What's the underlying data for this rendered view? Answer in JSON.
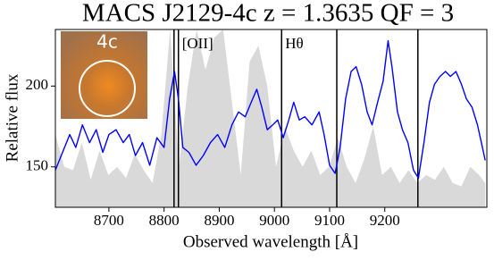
{
  "chart_data": {
    "type": "spectrum",
    "title": "MACS J2129-4c z = 1.3635 QF = 3",
    "x_label": "Observed wavelength [Å]",
    "y_label": "Relative flux",
    "inset_label": "4c",
    "xlim": [
      8603,
      9385
    ],
    "ylim": [
      125,
      235
    ],
    "xticks": [
      8700,
      8800,
      8900,
      9000,
      9100,
      9200
    ],
    "yticks": [
      150,
      200
    ],
    "lines": [
      8818,
      8826,
      9013,
      9113,
      9260
    ],
    "line_labels": [
      null,
      "[OII]",
      "Hθ",
      null,
      null
    ],
    "line_color": "#000000",
    "noise": {
      "color": "#d9d9d9",
      "x": [
        8603,
        8619,
        8635,
        8651,
        8667,
        8683,
        8699,
        8715,
        8731,
        8747,
        8763,
        8779,
        8795,
        8811,
        8827,
        8843,
        8859,
        8875,
        8891,
        8907,
        8923,
        8939,
        8955,
        8971,
        8987,
        9003,
        9019,
        9035,
        9051,
        9067,
        9083,
        9099,
        9115,
        9131,
        9147,
        9163,
        9179,
        9195,
        9211,
        9227,
        9243,
        9259,
        9275,
        9291,
        9307,
        9323,
        9339,
        9355,
        9371,
        9382
      ],
      "values": [
        170,
        150,
        148,
        165,
        142,
        160,
        145,
        150,
        143,
        158,
        148,
        140,
        170,
        235,
        150,
        200,
        235,
        210,
        230,
        235,
        190,
        145,
        215,
        225,
        200,
        150,
        175,
        160,
        150,
        160,
        145,
        150,
        168,
        150,
        140,
        155,
        175,
        145,
        150,
        140,
        148,
        140,
        145,
        142,
        150,
        140,
        138,
        150,
        145,
        140
      ]
    },
    "spectrum": {
      "color": "#0000ff",
      "x": [
        8603,
        8616,
        8629,
        8640,
        8652,
        8665,
        8677,
        8689,
        8700,
        8713,
        8726,
        8737,
        8748,
        8761,
        8774,
        8787,
        8800,
        8810,
        8819,
        8826,
        8834,
        8845,
        8858,
        8871,
        8884,
        8897,
        8910,
        8923,
        8935,
        8947,
        8958,
        8968,
        8977,
        8987,
        8997,
        9006,
        9016,
        9026,
        9035,
        9045,
        9055,
        9068,
        9081,
        9090,
        9100,
        9110,
        9119,
        9129,
        9139,
        9148,
        9158,
        9168,
        9177,
        9187,
        9197,
        9206,
        9213,
        9223,
        9232,
        9242,
        9252,
        9261,
        9271,
        9281,
        9290,
        9300,
        9310,
        9319,
        9329,
        9339,
        9348,
        9358,
        9368,
        9377,
        9382
      ],
      "values": [
        148,
        159,
        170,
        162,
        176,
        165,
        173,
        159,
        170,
        173,
        165,
        170,
        157,
        165,
        151,
        168,
        162,
        192,
        209,
        192,
        162,
        159,
        151,
        157,
        165,
        170,
        162,
        176,
        184,
        181,
        190,
        198,
        187,
        173,
        176,
        179,
        168,
        179,
        190,
        179,
        181,
        176,
        184,
        170,
        151,
        146,
        162,
        192,
        209,
        212,
        201,
        184,
        176,
        190,
        203,
        228,
        212,
        184,
        173,
        165,
        148,
        143,
        165,
        190,
        201,
        206,
        209,
        206,
        209,
        201,
        192,
        187,
        176,
        162,
        154
      ]
    }
  }
}
